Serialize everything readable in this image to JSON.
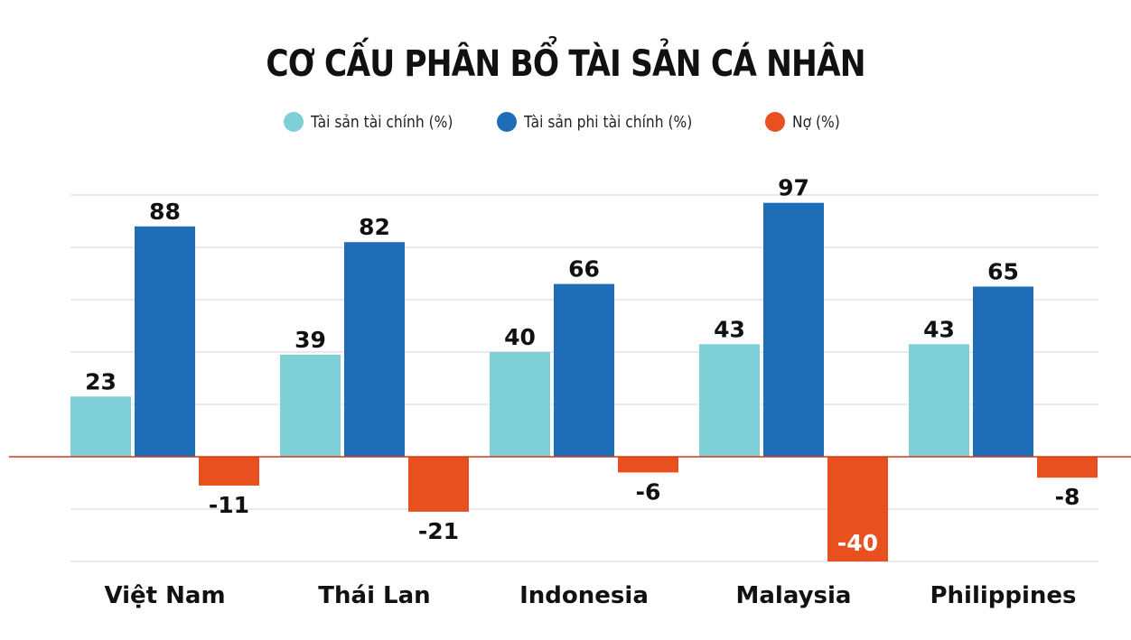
{
  "title": "CƠ CẤU PHÂN BỔ TÀI SẢN CÁ NHÂN",
  "legend": [
    {
      "label": "Tài sản tài chính (%)",
      "color": "#7ecfd6"
    },
    {
      "label": "Tài sản phi tài chính (%)",
      "color": "#1f6db6"
    },
    {
      "label": "Nợ (%)",
      "color": "#e8501f"
    }
  ],
  "chart_data": {
    "type": "bar",
    "categories": [
      "Việt Nam",
      "Thái Lan",
      "Indonesia",
      "Malaysia",
      "Philippines"
    ],
    "series": [
      {
        "name": "Tài sản tài chính (%)",
        "color": "#7ecfd6",
        "values": [
          23,
          39,
          40,
          43,
          43
        ]
      },
      {
        "name": "Tài sản phi tài chính (%)",
        "color": "#1f6db6",
        "values": [
          88,
          82,
          66,
          97,
          65
        ]
      },
      {
        "name": "Nợ (%)",
        "color": "#e8501f",
        "values": [
          -11,
          -21,
          -6,
          -40,
          -8
        ]
      }
    ],
    "ylim": [
      -40,
      100
    ],
    "grid": true,
    "legend_position": "top"
  }
}
